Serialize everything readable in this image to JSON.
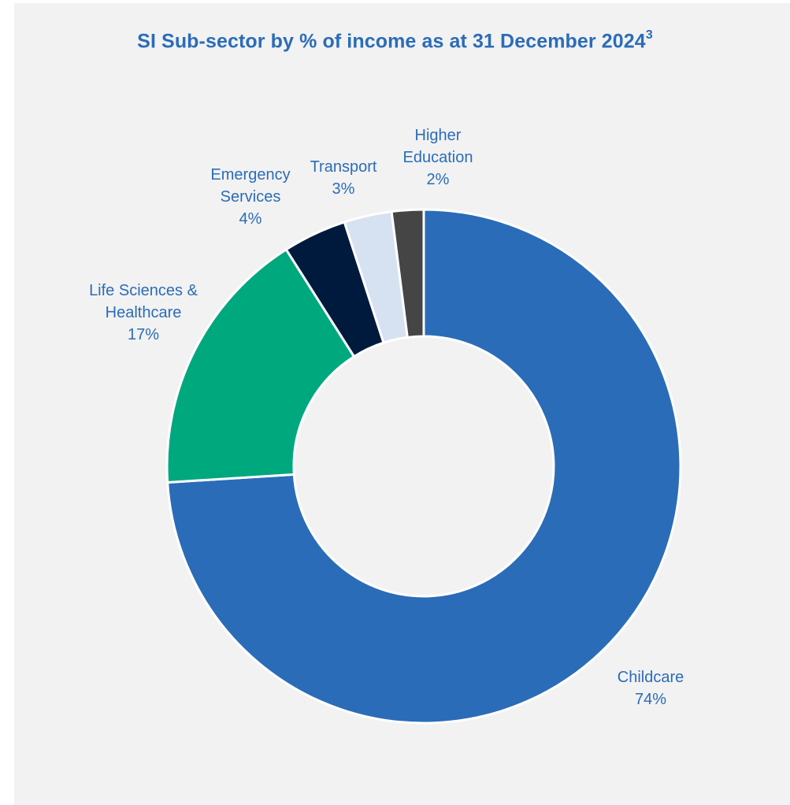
{
  "chart_data": {
    "type": "pie",
    "variant": "donut",
    "title": "SI Sub-sector by % of income as at 31 December 2024",
    "title_superscript": "3",
    "series": [
      {
        "slices": [
          {
            "label": "Childcare",
            "value": 74,
            "value_label": "74%",
            "color": "#2b6cb8"
          },
          {
            "label": "Life Sciences & Healthcare",
            "value": 17,
            "value_label": "17%",
            "color": "#00a87e"
          },
          {
            "label": "Emergency Services",
            "value": 4,
            "value_label": "4%",
            "color": "#001a3d"
          },
          {
            "label": "Transport",
            "value": 3,
            "value_label": "3%",
            "color": "#d6e2f2"
          },
          {
            "label": "Higher Education",
            "value": 2,
            "value_label": "2%",
            "color": "#454545"
          }
        ]
      }
    ],
    "legend": "none",
    "grid": false
  }
}
